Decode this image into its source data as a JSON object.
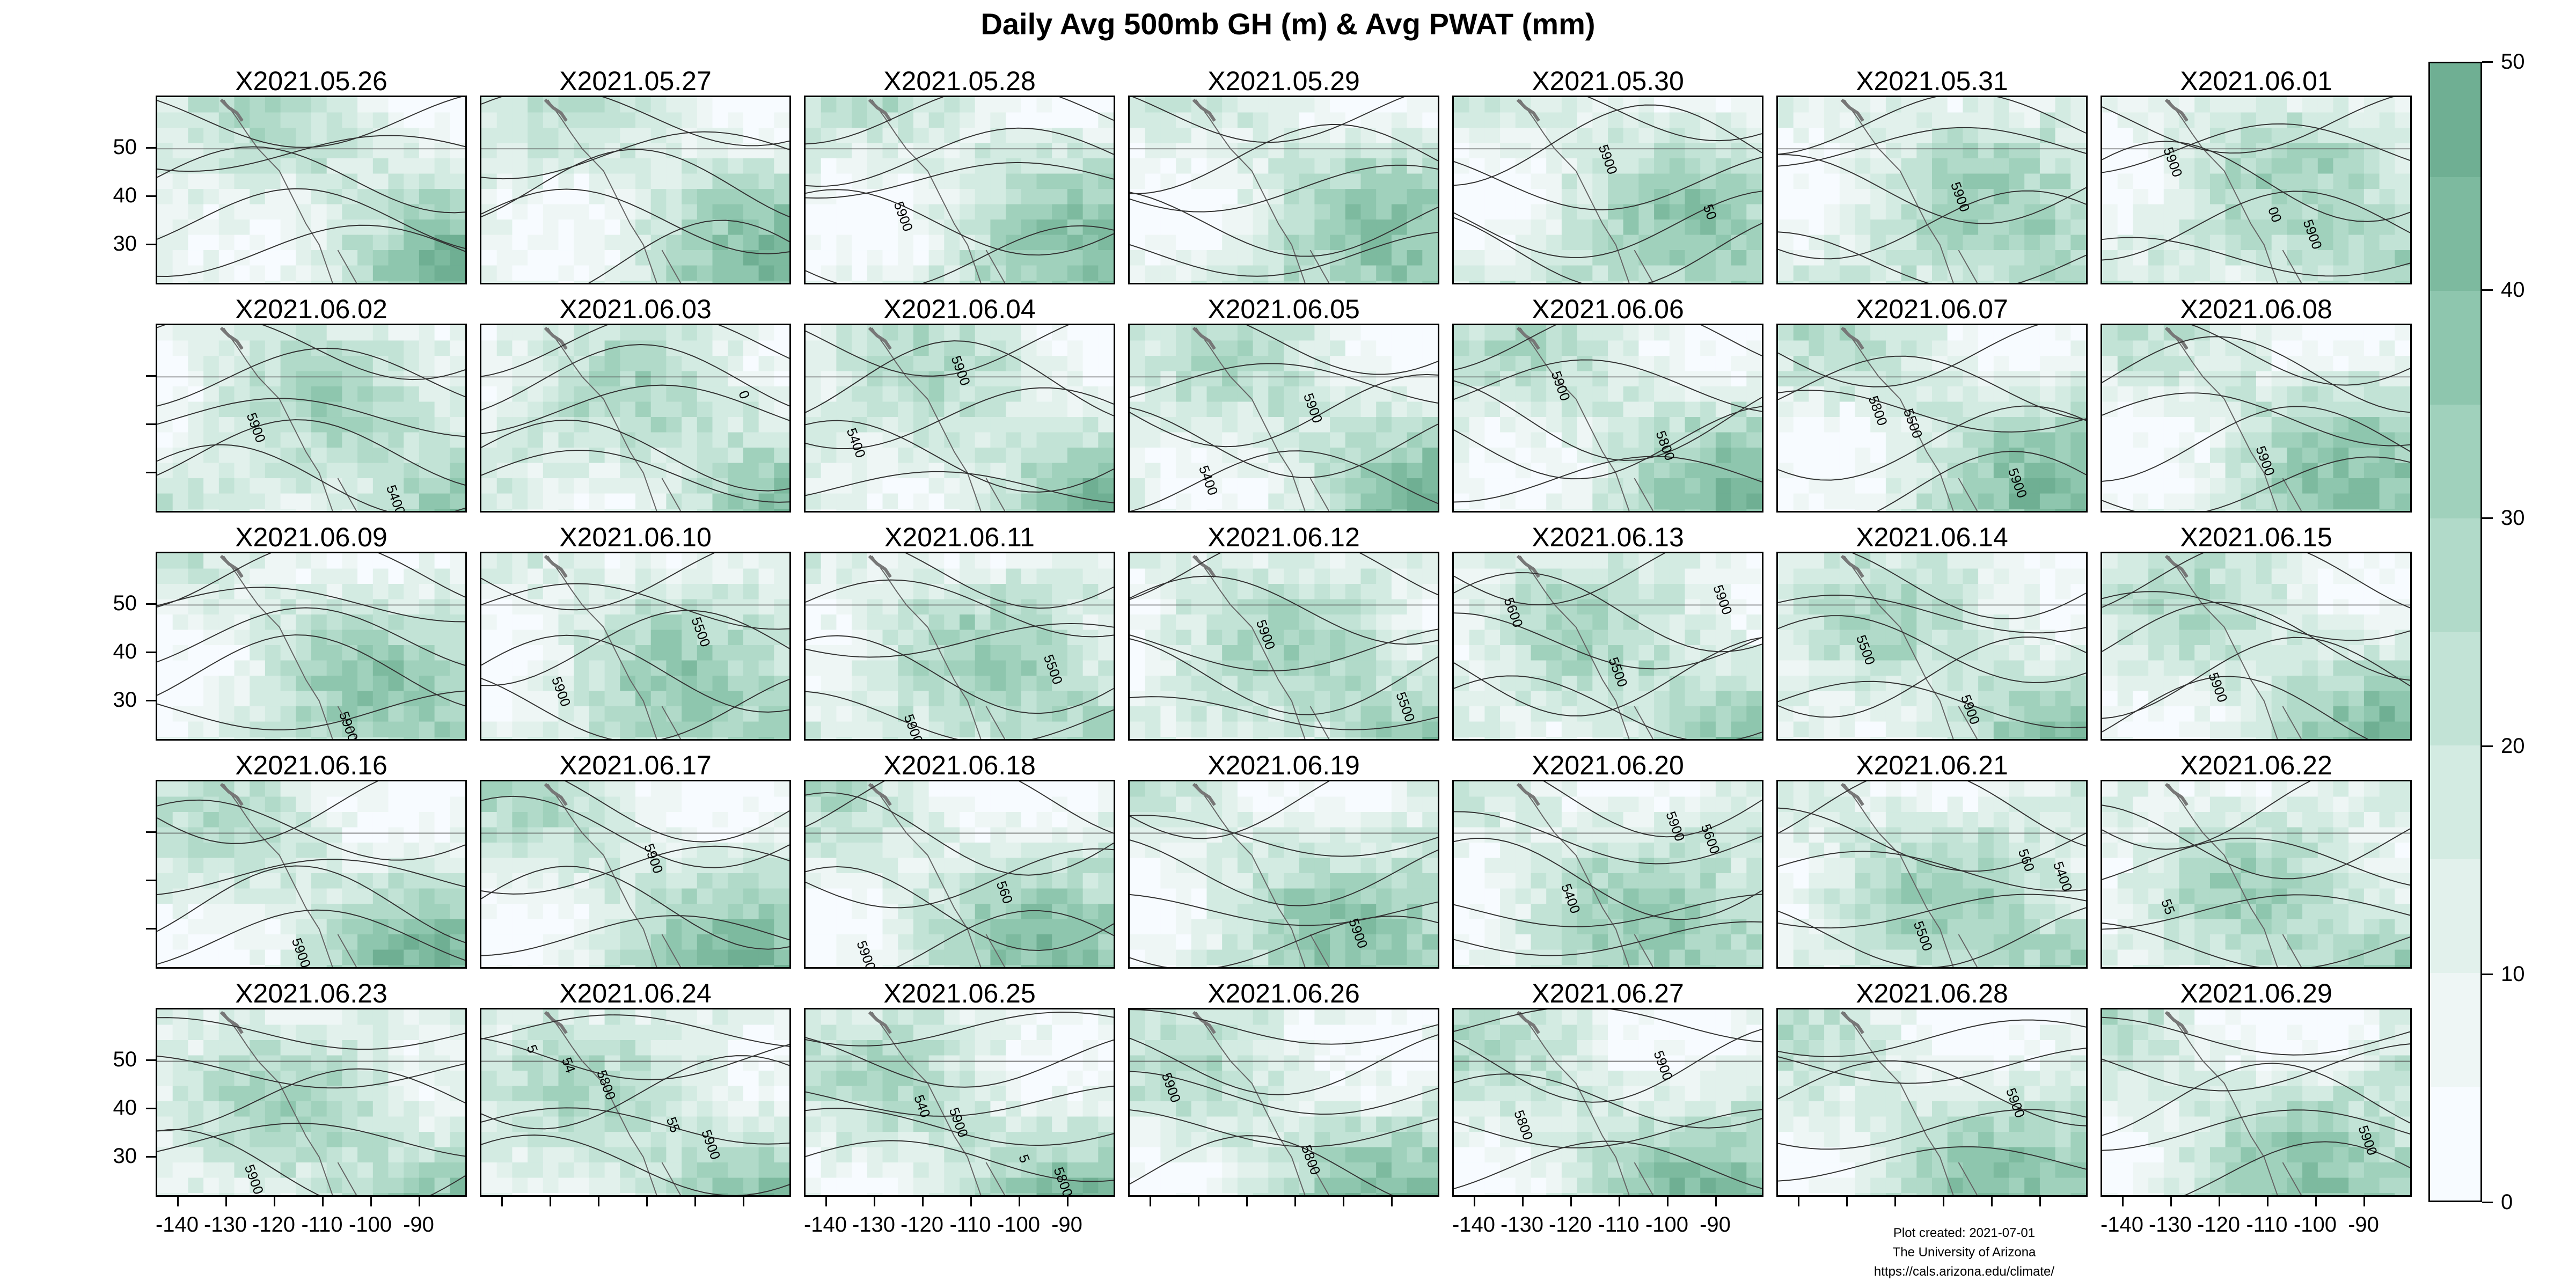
{
  "title": "Daily Avg 500mb GH (m) & Avg PWAT (mm)",
  "panels": [
    {
      "label": "X2021.05.26",
      "contours": []
    },
    {
      "label": "X2021.05.27",
      "contours": []
    },
    {
      "label": "X2021.05.28",
      "contours": [
        "5900"
      ]
    },
    {
      "label": "X2021.05.29",
      "contours": []
    },
    {
      "label": "X2021.05.30",
      "contours": [
        "5900",
        "50"
      ]
    },
    {
      "label": "X2021.05.31",
      "contours": [
        "5900"
      ]
    },
    {
      "label": "X2021.06.01",
      "contours": [
        "5900",
        "5900",
        "00"
      ]
    },
    {
      "label": "X2021.06.02",
      "contours": [
        "5400",
        "5900"
      ]
    },
    {
      "label": "X2021.06.03",
      "contours": [
        "0"
      ]
    },
    {
      "label": "X2021.06.04",
      "contours": [
        "5400",
        "5900"
      ]
    },
    {
      "label": "X2021.06.05",
      "contours": [
        "5400",
        "5900"
      ]
    },
    {
      "label": "X2021.06.06",
      "contours": [
        "5900",
        "5800"
      ]
    },
    {
      "label": "X2021.06.07",
      "contours": [
        "5500",
        "5900",
        "5800"
      ]
    },
    {
      "label": "X2021.06.08",
      "contours": [
        "5900"
      ]
    },
    {
      "label": "X2021.06.09",
      "contours": [
        "5900"
      ]
    },
    {
      "label": "X2021.06.10",
      "contours": [
        "5500",
        "5900"
      ]
    },
    {
      "label": "X2021.06.11",
      "contours": [
        "5500",
        "5900"
      ]
    },
    {
      "label": "X2021.06.12",
      "contours": [
        "5500",
        "5900"
      ]
    },
    {
      "label": "X2021.06.13",
      "contours": [
        "5600",
        "5500",
        "5900"
      ]
    },
    {
      "label": "X2021.06.14",
      "contours": [
        "5500",
        "5900"
      ]
    },
    {
      "label": "X2021.06.15",
      "contours": [
        "5900"
      ]
    },
    {
      "label": "X2021.06.16",
      "contours": [
        "5900"
      ]
    },
    {
      "label": "X2021.06.17",
      "contours": [
        "5900"
      ]
    },
    {
      "label": "X2021.06.18",
      "contours": [
        "560",
        "5900"
      ]
    },
    {
      "label": "X2021.06.19",
      "contours": [
        "5900"
      ]
    },
    {
      "label": "X2021.06.20",
      "contours": [
        "5600",
        "5400",
        "5900"
      ]
    },
    {
      "label": "X2021.06.21",
      "contours": [
        "5400",
        "5500",
        "560"
      ]
    },
    {
      "label": "X2021.06.22",
      "contours": [
        "55"
      ]
    },
    {
      "label": "X2021.06.23",
      "contours": [
        "5900"
      ]
    },
    {
      "label": "X2021.06.24",
      "contours": [
        "5800",
        "5900",
        "54",
        "55",
        "5"
      ]
    },
    {
      "label": "X2021.06.25",
      "contours": [
        "5900",
        "5800",
        "540",
        "5"
      ]
    },
    {
      "label": "X2021.06.26",
      "contours": [
        "5800",
        "5900"
      ]
    },
    {
      "label": "X2021.06.27",
      "contours": [
        "5900",
        "5800"
      ]
    },
    {
      "label": "X2021.06.28",
      "contours": [
        "5900"
      ]
    },
    {
      "label": "X2021.06.29",
      "contours": [
        "5900"
      ]
    }
  ],
  "y_ticks": [
    "50",
    "40",
    "30"
  ],
  "x_ticks": [
    "-140",
    "-130",
    "-120",
    "-110",
    "-100",
    "-90"
  ],
  "colorbar": {
    "ticks": [
      "50",
      "40",
      "30",
      "20",
      "10",
      "0"
    ],
    "colors": [
      "#f7fbff",
      "#eef6f5",
      "#e2f1ec",
      "#d3ebe2",
      "#c2e3d6",
      "#b1dac9",
      "#a0d1bc",
      "#8ec6ae",
      "#7dba9f",
      "#6faf93"
    ]
  },
  "credits": [
    "Plot created: 2021-07-01",
    "The University of Arizona",
    "https://cals.arizona.edu/climate/"
  ]
}
